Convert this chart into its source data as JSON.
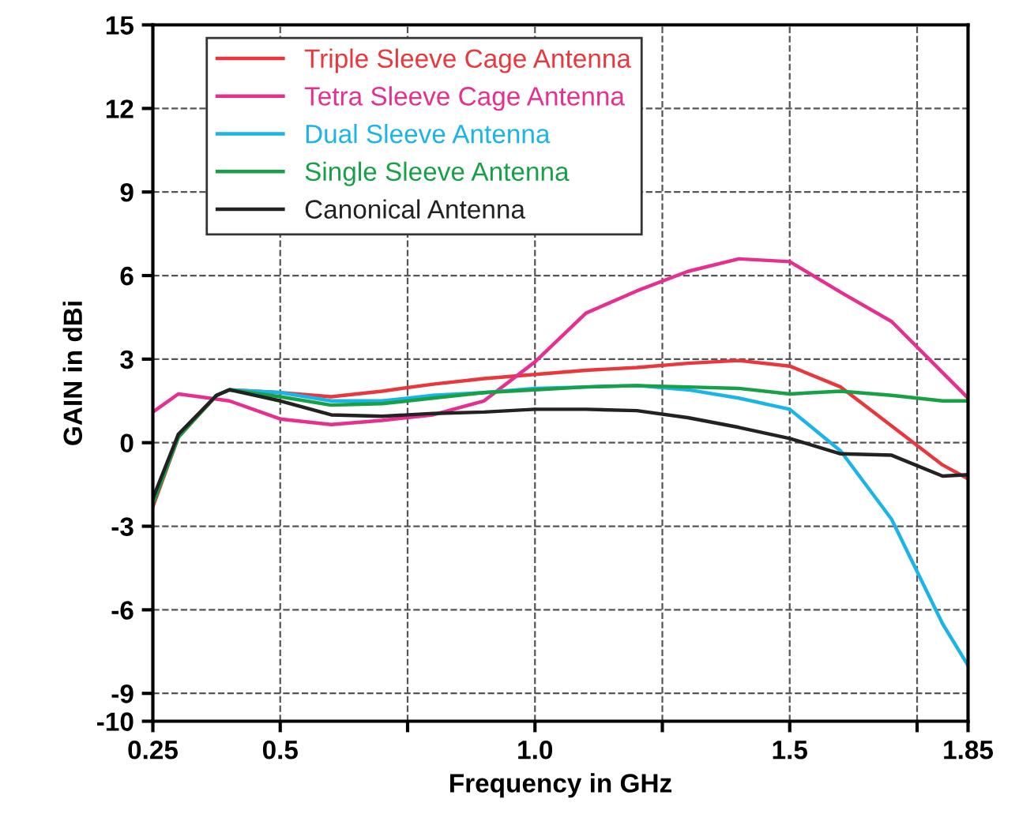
{
  "chart_data": {
    "type": "line",
    "xlabel": "Frequency in GHz",
    "ylabel": "GAIN in dBi",
    "x": [
      0.25,
      0.3,
      0.375,
      0.4,
      0.5,
      0.6,
      0.7,
      0.8,
      0.9,
      1.0,
      1.1,
      1.2,
      1.3,
      1.4,
      1.5,
      1.6,
      1.7,
      1.8,
      1.85
    ],
    "series": [
      {
        "name": "Triple Sleeve Cage Antenna",
        "color": "#e8383d",
        "values": [
          -2.3,
          0.2,
          1.7,
          1.9,
          1.8,
          1.65,
          1.85,
          2.1,
          2.3,
          2.45,
          2.6,
          2.7,
          2.85,
          2.95,
          2.75,
          2.0,
          0.6,
          -0.8,
          -1.3
        ]
      },
      {
        "name": "Tetra Sleeve Cage Antenna",
        "color": "#e5308f",
        "x": [
          0.25,
          0.3,
          0.4,
          0.5,
          0.6,
          0.7,
          0.8,
          0.9,
          1.0,
          1.1,
          1.2,
          1.3,
          1.4,
          1.5,
          1.6,
          1.7,
          1.85
        ],
        "values": [
          1.1,
          1.75,
          1.5,
          0.85,
          0.65,
          0.8,
          1.0,
          1.5,
          2.9,
          4.65,
          5.45,
          6.15,
          6.6,
          6.5,
          5.4,
          4.35,
          1.6
        ]
      },
      {
        "name": "Dual Sleeve Antenna",
        "color": "#1ab4e8",
        "values": [
          null,
          null,
          1.7,
          1.9,
          1.8,
          1.5,
          1.5,
          1.7,
          1.8,
          1.95,
          2.0,
          2.05,
          1.9,
          1.6,
          1.2,
          -0.3,
          -2.75,
          -6.5,
          -8.0
        ]
      },
      {
        "name": "Single Sleeve Antenna",
        "color": "#17a046",
        "values": [
          -2.2,
          0.2,
          1.7,
          1.9,
          1.65,
          1.35,
          1.4,
          1.6,
          1.8,
          1.9,
          2.0,
          2.05,
          2.0,
          1.95,
          1.75,
          1.85,
          1.7,
          1.5,
          1.5
        ]
      },
      {
        "name": "Canonical Antenna",
        "color": "#222222",
        "values": [
          -2.0,
          0.3,
          1.7,
          1.9,
          1.5,
          1.0,
          0.95,
          1.05,
          1.1,
          1.2,
          1.2,
          1.15,
          0.9,
          0.55,
          0.15,
          -0.4,
          -0.45,
          -1.2,
          -1.15
        ]
      }
    ],
    "xlim": [
      0.25,
      1.85
    ],
    "xticks": [
      0.25,
      0.5,
      {
        "value": 1.0,
        "label": "1.0"
      },
      1.5,
      1.85,
      {
        "value": 0.75,
        "label": null
      },
      {
        "value": 1.25,
        "label": null
      },
      {
        "value": 1.75,
        "label": null
      }
    ],
    "ylim": [
      -10,
      15
    ],
    "yticks": [
      -10,
      -9,
      -6,
      -3,
      0,
      3,
      6,
      9,
      12,
      15
    ],
    "grid": true,
    "legend": "top left",
    "line_style": "solid"
  }
}
